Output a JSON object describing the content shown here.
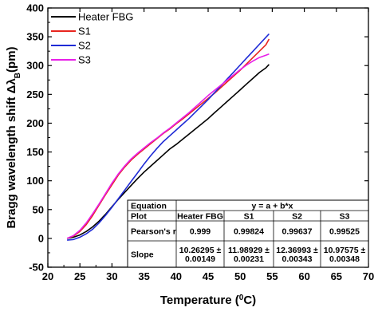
{
  "chart_data": {
    "type": "line",
    "xlabel": "Temperature (",
    "xlabel_sup": "0",
    "xlabel_tail": "C)",
    "ylabel": "Bragg wavelength shift Δλ",
    "ylabel_sub": "B",
    "ylabel_tail": "(pm)",
    "xlim": [
      20,
      70
    ],
    "ylim": [
      -50,
      400
    ],
    "xticks": [
      20,
      25,
      30,
      35,
      40,
      45,
      50,
      55,
      60,
      65,
      70
    ],
    "yticks": [
      -50,
      0,
      50,
      100,
      150,
      200,
      250,
      300,
      350,
      400
    ],
    "grid": false,
    "legend_position": "top-left",
    "series": [
      {
        "name": "Heater FBG",
        "color": "#000000",
        "x": [
          23,
          24,
          25,
          26,
          27,
          28,
          29,
          30,
          31,
          32,
          33,
          34,
          35,
          36,
          37,
          38,
          39,
          40,
          41,
          42,
          43,
          44,
          45,
          46,
          47,
          48,
          49,
          50,
          51,
          52,
          53,
          54,
          54.5
        ],
        "y": [
          0,
          2,
          6,
          12,
          20,
          30,
          42,
          55,
          68,
          80,
          92,
          104,
          115,
          125,
          135,
          145,
          155,
          163,
          172,
          181,
          190,
          199,
          208,
          218,
          228,
          238,
          248,
          258,
          268,
          278,
          288,
          296,
          302
        ]
      },
      {
        "name": "S1",
        "color": "#e8261f",
        "x": [
          23,
          24,
          25,
          26,
          27,
          28,
          29,
          30,
          31,
          32,
          33,
          34,
          35,
          36,
          37,
          38,
          39,
          40,
          41,
          42,
          43,
          44,
          45,
          46,
          47,
          48,
          49,
          50,
          51,
          52,
          53,
          54,
          54.5
        ],
        "y": [
          0,
          4,
          12,
          24,
          40,
          58,
          76,
          93,
          110,
          124,
          136,
          146,
          155,
          164,
          173,
          182,
          190,
          199,
          207,
          216,
          225,
          234,
          243,
          252,
          262,
          272,
          282,
          292,
          303,
          314,
          325,
          336,
          346
        ]
      },
      {
        "name": "S2",
        "color": "#1f2bd6",
        "x": [
          23,
          24,
          25,
          26,
          27,
          28,
          29,
          30,
          31,
          32,
          33,
          34,
          35,
          36,
          37,
          38,
          39,
          40,
          41,
          42,
          43,
          44,
          45,
          46,
          47,
          48,
          49,
          50,
          51,
          52,
          53,
          54,
          54.5
        ],
        "y": [
          -3,
          -2,
          2,
          8,
          16,
          27,
          40,
          54,
          69,
          84,
          99,
          114,
          129,
          143,
          156,
          168,
          178,
          188,
          198,
          208,
          219,
          230,
          241,
          253,
          265,
          277,
          289,
          301,
          313,
          325,
          337,
          349,
          355
        ]
      },
      {
        "name": "S3",
        "color": "#e81fe8",
        "x": [
          23,
          24,
          25,
          26,
          27,
          28,
          29,
          30,
          31,
          32,
          33,
          34,
          35,
          36,
          37,
          38,
          39,
          40,
          41,
          42,
          43,
          44,
          45,
          46,
          47,
          48,
          49,
          50,
          51,
          52,
          53,
          54,
          54.5
        ],
        "y": [
          0,
          5,
          14,
          27,
          43,
          60,
          78,
          96,
          112,
          126,
          138,
          148,
          157,
          166,
          174,
          183,
          191,
          200,
          209,
          218,
          228,
          238,
          248,
          257,
          266,
          275,
          284,
          293,
          301,
          308,
          314,
          318,
          320
        ]
      }
    ],
    "table": {
      "rows": [
        [
          "Equation",
          "",
          "y = a + b*x",
          "",
          ""
        ],
        [
          "Plot",
          "Heater FBG",
          "S1",
          "S2",
          "S3"
        ],
        [
          "Pearson's r",
          "0.999",
          "0.99824",
          "0.99637",
          "0.99525"
        ],
        [
          "Slope",
          "10.26295 ±\n0.00149",
          "11.98929 ±\n0.00231",
          "12.36993 ±\n0.00343",
          "10.97575 ±\n0.00348"
        ]
      ]
    }
  }
}
